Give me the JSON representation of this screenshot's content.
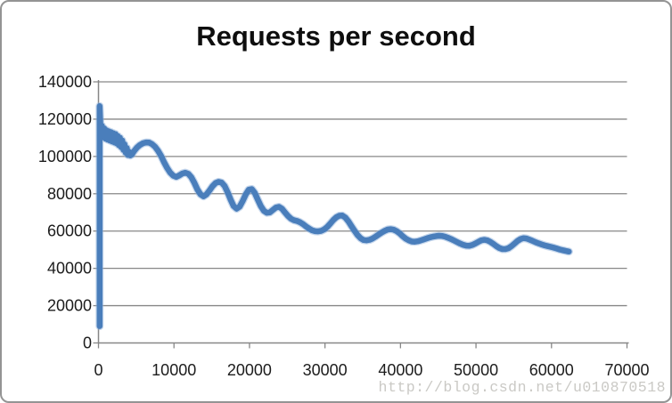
{
  "chart": {
    "title": "Requests per second",
    "watermark": "http://blog.csdn.net/u010870518"
  },
  "chart_data": {
    "type": "line",
    "title": "Requests per second",
    "xlabel": "",
    "ylabel": "",
    "xlim": [
      0,
      70000
    ],
    "ylim": [
      0,
      140000
    ],
    "xticks": [
      0,
      10000,
      20000,
      30000,
      40000,
      50000,
      60000,
      70000
    ],
    "yticks": [
      0,
      20000,
      40000,
      60000,
      80000,
      100000,
      120000,
      140000
    ],
    "grid": "horizontal",
    "legend": "none",
    "line_color": "#4a7ebb",
    "line_halo_color": "#8fb2dc",
    "axis_color": "#878787",
    "tick_label_color": "#1c1c1c",
    "watermark": "http://blog.csdn.net/u010870518",
    "series": [
      {
        "name": "Requests per second",
        "points": [
          [
            150,
            9000
          ],
          [
            150,
            127000
          ],
          [
            300,
            112500
          ],
          [
            450,
            116500
          ],
          [
            600,
            110500
          ],
          [
            750,
            115000
          ],
          [
            900,
            109500
          ],
          [
            1050,
            114000
          ],
          [
            1200,
            109000
          ],
          [
            1350,
            113500
          ],
          [
            1500,
            108500
          ],
          [
            1650,
            113000
          ],
          [
            1800,
            108000
          ],
          [
            1950,
            112500
          ],
          [
            2100,
            107500
          ],
          [
            2250,
            112000
          ],
          [
            2400,
            107000
          ],
          [
            2550,
            111000
          ],
          [
            2700,
            106000
          ],
          [
            2850,
            110000
          ],
          [
            3000,
            105000
          ],
          [
            3150,
            108500
          ],
          [
            3300,
            103500
          ],
          [
            3450,
            106500
          ],
          [
            3600,
            102000
          ],
          [
            3750,
            104500
          ],
          [
            3900,
            100800
          ],
          [
            4050,
            102500
          ],
          [
            4200,
            100500
          ],
          [
            4400,
            101000
          ],
          [
            4700,
            102800
          ],
          [
            5100,
            104800
          ],
          [
            5500,
            106200
          ],
          [
            5900,
            107100
          ],
          [
            6300,
            107500
          ],
          [
            6700,
            107400
          ],
          [
            7100,
            106600
          ],
          [
            7500,
            105200
          ],
          [
            7900,
            103000
          ],
          [
            8300,
            100200
          ],
          [
            8700,
            96800
          ],
          [
            9100,
            93800
          ],
          [
            9500,
            91300
          ],
          [
            9900,
            89700
          ],
          [
            10300,
            89000
          ],
          [
            10700,
            89800
          ],
          [
            11100,
            90800
          ],
          [
            11500,
            91300
          ],
          [
            11900,
            90700
          ],
          [
            12300,
            88800
          ],
          [
            12700,
            85800
          ],
          [
            13100,
            82300
          ],
          [
            13500,
            79700
          ],
          [
            13900,
            78600
          ],
          [
            14300,
            79600
          ],
          [
            14700,
            81700
          ],
          [
            15100,
            84000
          ],
          [
            15500,
            85700
          ],
          [
            15900,
            86400
          ],
          [
            16300,
            86000
          ],
          [
            16700,
            84200
          ],
          [
            17100,
            80800
          ],
          [
            17500,
            76800
          ],
          [
            17900,
            73400
          ],
          [
            18300,
            72000
          ],
          [
            18700,
            73100
          ],
          [
            19100,
            76100
          ],
          [
            19500,
            79600
          ],
          [
            19900,
            82200
          ],
          [
            20300,
            82500
          ],
          [
            20700,
            80400
          ],
          [
            21100,
            76900
          ],
          [
            21500,
            73400
          ],
          [
            21900,
            70900
          ],
          [
            22300,
            69800
          ],
          [
            22700,
            70000
          ],
          [
            23100,
            71300
          ],
          [
            23500,
            72600
          ],
          [
            23900,
            73000
          ],
          [
            24300,
            72000
          ],
          [
            24700,
            70000
          ],
          [
            25100,
            68100
          ],
          [
            25500,
            66600
          ],
          [
            25900,
            65800
          ],
          [
            26300,
            65400
          ],
          [
            26700,
            64700
          ],
          [
            27100,
            63700
          ],
          [
            27500,
            62400
          ],
          [
            27900,
            61300
          ],
          [
            28300,
            60400
          ],
          [
            28700,
            59900
          ],
          [
            29100,
            59800
          ],
          [
            29500,
            60100
          ],
          [
            29900,
            60900
          ],
          [
            30300,
            62200
          ],
          [
            30700,
            64000
          ],
          [
            31100,
            65900
          ],
          [
            31500,
            67400
          ],
          [
            31900,
            68200
          ],
          [
            32300,
            68300
          ],
          [
            32700,
            67200
          ],
          [
            33100,
            65200
          ],
          [
            33500,
            62700
          ],
          [
            33900,
            60200
          ],
          [
            34300,
            57900
          ],
          [
            34700,
            56200
          ],
          [
            35100,
            55200
          ],
          [
            35500,
            55000
          ],
          [
            35900,
            55300
          ],
          [
            36300,
            56000
          ],
          [
            36700,
            57000
          ],
          [
            37100,
            58100
          ],
          [
            37500,
            59200
          ],
          [
            37900,
            60100
          ],
          [
            38300,
            60800
          ],
          [
            38700,
            61000
          ],
          [
            39100,
            60700
          ],
          [
            39500,
            59900
          ],
          [
            39900,
            58700
          ],
          [
            40300,
            57200
          ],
          [
            40700,
            55900
          ],
          [
            41100,
            55000
          ],
          [
            41500,
            54400
          ],
          [
            41900,
            54300
          ],
          [
            42300,
            54500
          ],
          [
            42700,
            55000
          ],
          [
            43100,
            55500
          ],
          [
            43500,
            56100
          ],
          [
            43900,
            56600
          ],
          [
            44300,
            57000
          ],
          [
            44700,
            57300
          ],
          [
            45100,
            57500
          ],
          [
            45500,
            57400
          ],
          [
            45900,
            57000
          ],
          [
            46300,
            56400
          ],
          [
            46700,
            55700
          ],
          [
            47100,
            54900
          ],
          [
            47500,
            54100
          ],
          [
            47900,
            53300
          ],
          [
            48300,
            52600
          ],
          [
            48700,
            52200
          ],
          [
            49100,
            52100
          ],
          [
            49500,
            52500
          ],
          [
            49900,
            53300
          ],
          [
            50300,
            54200
          ],
          [
            50700,
            55000
          ],
          [
            51100,
            55300
          ],
          [
            51500,
            55000
          ],
          [
            51900,
            54200
          ],
          [
            52300,
            53100
          ],
          [
            52700,
            51900
          ],
          [
            53100,
            50900
          ],
          [
            53500,
            50300
          ],
          [
            53900,
            50300
          ],
          [
            54300,
            50800
          ],
          [
            54700,
            51900
          ],
          [
            55100,
            53300
          ],
          [
            55500,
            54700
          ],
          [
            55900,
            55700
          ],
          [
            56300,
            56200
          ],
          [
            56700,
            56000
          ],
          [
            57100,
            55400
          ],
          [
            57500,
            54700
          ],
          [
            57900,
            54000
          ],
          [
            58300,
            53400
          ],
          [
            58700,
            52800
          ],
          [
            59100,
            52300
          ],
          [
            59500,
            51900
          ],
          [
            59900,
            51500
          ],
          [
            60300,
            51100
          ],
          [
            60700,
            50600
          ],
          [
            61100,
            50100
          ],
          [
            61500,
            49700
          ],
          [
            61900,
            49300
          ],
          [
            62300,
            49000
          ]
        ]
      }
    ]
  }
}
